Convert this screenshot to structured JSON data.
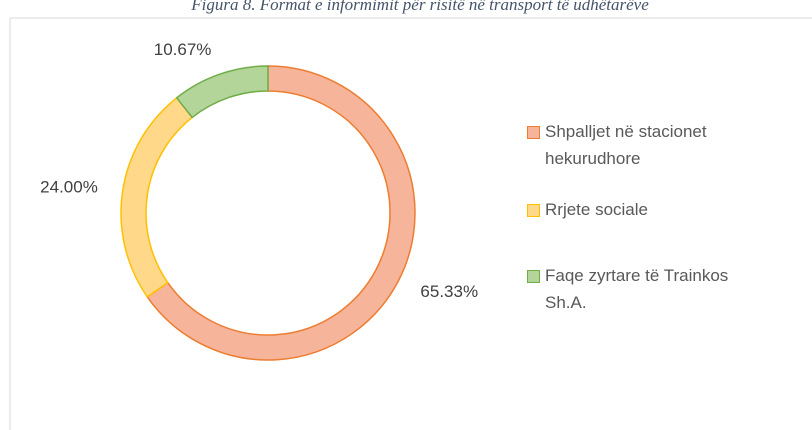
{
  "chart_data": {
    "type": "donut",
    "title": "Figura 8. Format e informimit për risitë në transport të udhëtarëve",
    "categories": [
      "Shpalljet në stacionet hekurudhore",
      "Rrjete sociale",
      "Faqe zyrtare të Trainkos Sh.A."
    ],
    "values": [
      65.33,
      24.0,
      10.67
    ],
    "value_labels": [
      "65.33%",
      "24.00%",
      "10.67%"
    ],
    "colors": [
      "#f6b49a",
      "#ffd88a",
      "#b3d59a"
    ],
    "edge_colors": [
      "#ed7d31",
      "#ffc000",
      "#70ad47"
    ],
    "legend": "right"
  }
}
